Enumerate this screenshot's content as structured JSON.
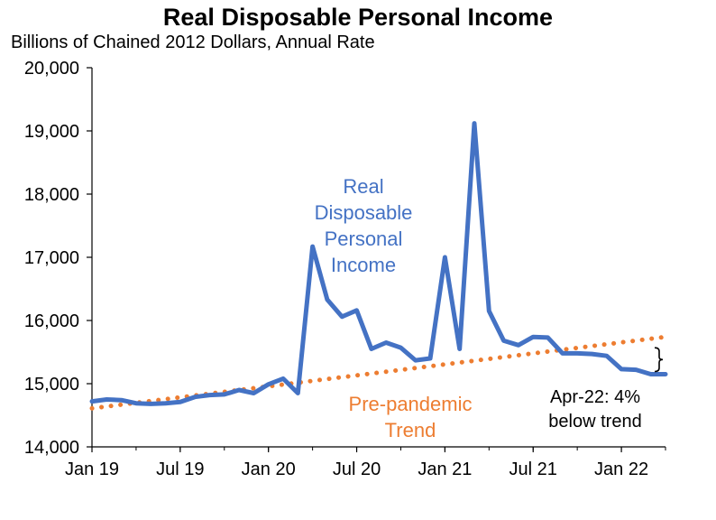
{
  "chart_data": {
    "type": "line",
    "title": "Real Disposable Personal Income",
    "subtitle": "Billions of Chained 2012 Dollars, Annual Rate",
    "xlabel": "",
    "ylabel": "",
    "ylim": [
      14000,
      20000
    ],
    "y_ticks": [
      "14,000",
      "15,000",
      "16,000",
      "17,000",
      "18,000",
      "19,000",
      "20,000"
    ],
    "y_tick_values": [
      14000,
      15000,
      16000,
      17000,
      18000,
      19000,
      20000
    ],
    "x_tick_labels": [
      "Jan 19",
      "Jul 19",
      "Jan 20",
      "Jul 20",
      "Jan 21",
      "Jul 21",
      "Jan 22"
    ],
    "x_tick_months": [
      "2019-01",
      "2019-07",
      "2020-01",
      "2020-07",
      "2021-01",
      "2021-07",
      "2022-01"
    ],
    "x_range": [
      "2019-01",
      "2022-04"
    ],
    "grid": false,
    "legend": "none",
    "series": [
      {
        "name": "Real Disposable Personal Income",
        "label_lines": [
          "Real",
          "Disposable",
          "Personal",
          "Income"
        ],
        "color": "#4472C4",
        "style": "solid",
        "points": [
          {
            "month": "2019-01",
            "value": 14720
          },
          {
            "month": "2019-02",
            "value": 14750
          },
          {
            "month": "2019-03",
            "value": 14740
          },
          {
            "month": "2019-04",
            "value": 14690
          },
          {
            "month": "2019-05",
            "value": 14680
          },
          {
            "month": "2019-06",
            "value": 14690
          },
          {
            "month": "2019-07",
            "value": 14710
          },
          {
            "month": "2019-08",
            "value": 14790
          },
          {
            "month": "2019-09",
            "value": 14820
          },
          {
            "month": "2019-10",
            "value": 14830
          },
          {
            "month": "2019-11",
            "value": 14900
          },
          {
            "month": "2019-12",
            "value": 14850
          },
          {
            "month": "2020-01",
            "value": 14990
          },
          {
            "month": "2020-02",
            "value": 15080
          },
          {
            "month": "2020-03",
            "value": 14850
          },
          {
            "month": "2020-04",
            "value": 17170
          },
          {
            "month": "2020-05",
            "value": 16330
          },
          {
            "month": "2020-06",
            "value": 16060
          },
          {
            "month": "2020-07",
            "value": 16160
          },
          {
            "month": "2020-08",
            "value": 15550
          },
          {
            "month": "2020-09",
            "value": 15650
          },
          {
            "month": "2020-10",
            "value": 15570
          },
          {
            "month": "2020-11",
            "value": 15370
          },
          {
            "month": "2020-12",
            "value": 15400
          },
          {
            "month": "2021-01",
            "value": 17000
          },
          {
            "month": "2021-02",
            "value": 15550
          },
          {
            "month": "2021-03",
            "value": 19120
          },
          {
            "month": "2021-04",
            "value": 16150
          },
          {
            "month": "2021-05",
            "value": 15680
          },
          {
            "month": "2021-06",
            "value": 15610
          },
          {
            "month": "2021-07",
            "value": 15740
          },
          {
            "month": "2021-08",
            "value": 15730
          },
          {
            "month": "2021-09",
            "value": 15480
          },
          {
            "month": "2021-10",
            "value": 15480
          },
          {
            "month": "2021-11",
            "value": 15470
          },
          {
            "month": "2021-12",
            "value": 15440
          },
          {
            "month": "2022-01",
            "value": 15230
          },
          {
            "month": "2022-02",
            "value": 15220
          },
          {
            "month": "2022-03",
            "value": 15150
          },
          {
            "month": "2022-04",
            "value": 15150
          }
        ]
      },
      {
        "name": "Pre-pandemic Trend",
        "label_lines": [
          "Pre-pandemic",
          "Trend"
        ],
        "color": "#ED7D31",
        "style": "dotted",
        "points": [
          {
            "month": "2019-01",
            "value": 14610
          },
          {
            "month": "2022-04",
            "value": 15740
          }
        ]
      }
    ],
    "annotations": [
      {
        "text_lines": [
          "Apr-22: 4%",
          "below trend"
        ],
        "month": "2022-04",
        "from_value": 15150,
        "to_value": 15740
      }
    ]
  }
}
